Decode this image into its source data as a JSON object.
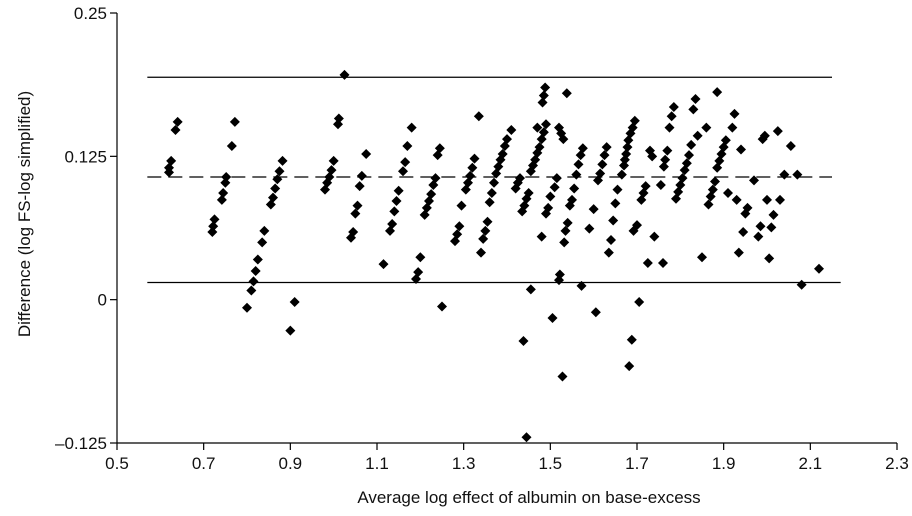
{
  "chart_data": {
    "type": "scatter",
    "title": "",
    "xlabel": "Average log effect of albumin on base-excess",
    "ylabel": "Difference (log FS-log simplified)",
    "xlim": [
      0.5,
      2.3
    ],
    "ylim": [
      -0.125,
      0.25
    ],
    "xticks": [
      0.5,
      0.7,
      0.9,
      1.1,
      1.3,
      1.5,
      1.7,
      1.9,
      2.1,
      2.3
    ],
    "yticks": [
      -0.125,
      0,
      0.125,
      0.25
    ],
    "xtick_labels": [
      "0.5",
      "0.7",
      "0.9",
      "1.1",
      "1.3",
      "1.5",
      "1.7",
      "1.9",
      "2.1",
      "2.3"
    ],
    "ytick_labels": [
      "–0.125",
      "0",
      "0.125",
      "0.25"
    ],
    "grid": false,
    "marker": "diamond",
    "marker_color": "#000000",
    "reference_lines": [
      {
        "kind": "upper-limit",
        "y": 0.194,
        "x_range": [
          0.57,
          2.15
        ],
        "style": "solid"
      },
      {
        "kind": "mean-difference",
        "y": 0.107,
        "x_range": [
          0.57,
          2.15
        ],
        "style": "dashed"
      },
      {
        "kind": "lower-limit",
        "y": 0.015,
        "x_range": [
          0.57,
          2.17
        ],
        "style": "solid"
      }
    ],
    "points": [
      [
        0.62,
        0.111
      ],
      [
        0.62,
        0.115
      ],
      [
        0.625,
        0.121
      ],
      [
        0.635,
        0.148
      ],
      [
        0.64,
        0.155
      ],
      [
        0.72,
        0.059
      ],
      [
        0.722,
        0.064
      ],
      [
        0.725,
        0.07
      ],
      [
        0.742,
        0.087
      ],
      [
        0.745,
        0.093
      ],
      [
        0.75,
        0.102
      ],
      [
        0.752,
        0.107
      ],
      [
        0.765,
        0.134
      ],
      [
        0.772,
        0.155
      ],
      [
        0.8,
        -0.007
      ],
      [
        0.81,
        0.008
      ],
      [
        0.815,
        0.016
      ],
      [
        0.82,
        0.025
      ],
      [
        0.825,
        0.035
      ],
      [
        0.835,
        0.05
      ],
      [
        0.84,
        0.06
      ],
      [
        0.855,
        0.083
      ],
      [
        0.86,
        0.089
      ],
      [
        0.865,
        0.097
      ],
      [
        0.87,
        0.105
      ],
      [
        0.875,
        0.112
      ],
      [
        0.882,
        0.121
      ],
      [
        0.9,
        -0.027
      ],
      [
        0.91,
        -0.002
      ],
      [
        0.98,
        0.096
      ],
      [
        0.985,
        0.102
      ],
      [
        0.99,
        0.107
      ],
      [
        0.995,
        0.113
      ],
      [
        1.0,
        0.121
      ],
      [
        1.01,
        0.153
      ],
      [
        1.012,
        0.158
      ],
      [
        1.025,
        0.196
      ],
      [
        1.04,
        0.054
      ],
      [
        1.045,
        0.059
      ],
      [
        1.05,
        0.075
      ],
      [
        1.055,
        0.082
      ],
      [
        1.06,
        0.099
      ],
      [
        1.065,
        0.108
      ],
      [
        1.075,
        0.127
      ],
      [
        1.115,
        0.031
      ],
      [
        1.13,
        0.06
      ],
      [
        1.135,
        0.066
      ],
      [
        1.14,
        0.077
      ],
      [
        1.145,
        0.086
      ],
      [
        1.15,
        0.095
      ],
      [
        1.16,
        0.112
      ],
      [
        1.165,
        0.12
      ],
      [
        1.17,
        0.134
      ],
      [
        1.18,
        0.15
      ],
      [
        1.19,
        0.018
      ],
      [
        1.195,
        0.024
      ],
      [
        1.2,
        0.037
      ],
      [
        1.21,
        0.074
      ],
      [
        1.215,
        0.08
      ],
      [
        1.22,
        0.086
      ],
      [
        1.225,
        0.092
      ],
      [
        1.23,
        0.1
      ],
      [
        1.235,
        0.106
      ],
      [
        1.24,
        0.126
      ],
      [
        1.245,
        0.132
      ],
      [
        1.25,
        -0.006
      ],
      [
        1.28,
        0.051
      ],
      [
        1.285,
        0.057
      ],
      [
        1.29,
        0.064
      ],
      [
        1.295,
        0.082
      ],
      [
        1.305,
        0.096
      ],
      [
        1.31,
        0.102
      ],
      [
        1.315,
        0.108
      ],
      [
        1.32,
        0.115
      ],
      [
        1.325,
        0.123
      ],
      [
        1.335,
        0.16
      ],
      [
        1.34,
        0.041
      ],
      [
        1.345,
        0.053
      ],
      [
        1.35,
        0.06
      ],
      [
        1.355,
        0.068
      ],
      [
        1.36,
        0.085
      ],
      [
        1.365,
        0.093
      ],
      [
        1.37,
        0.102
      ],
      [
        1.375,
        0.11
      ],
      [
        1.38,
        0.116
      ],
      [
        1.385,
        0.122
      ],
      [
        1.39,
        0.127
      ],
      [
        1.395,
        0.134
      ],
      [
        1.4,
        0.14
      ],
      [
        1.41,
        0.148
      ],
      [
        1.42,
        0.097
      ],
      [
        1.425,
        0.102
      ],
      [
        1.43,
        0.106
      ],
      [
        1.435,
        0.077
      ],
      [
        1.44,
        0.082
      ],
      [
        1.445,
        0.088
      ],
      [
        1.45,
        0.093
      ],
      [
        1.455,
        0.112
      ],
      [
        1.46,
        0.117
      ],
      [
        1.465,
        0.122
      ],
      [
        1.47,
        0.128
      ],
      [
        1.475,
        0.133
      ],
      [
        1.48,
        0.14
      ],
      [
        1.485,
        0.146
      ],
      [
        1.49,
        0.153
      ],
      [
        1.438,
        -0.036
      ],
      [
        1.445,
        -0.12
      ],
      [
        1.455,
        0.009
      ],
      [
        1.47,
        0.15
      ],
      [
        1.48,
        0.055
      ],
      [
        1.482,
        0.172
      ],
      [
        1.485,
        0.178
      ],
      [
        1.488,
        0.185
      ],
      [
        1.49,
        0.075
      ],
      [
        1.495,
        0.08
      ],
      [
        1.5,
        0.09
      ],
      [
        1.505,
        -0.016
      ],
      [
        1.51,
        0.098
      ],
      [
        1.515,
        0.106
      ],
      [
        1.52,
        0.017
      ],
      [
        1.522,
        0.022
      ],
      [
        1.52,
        0.15
      ],
      [
        1.525,
        0.145
      ],
      [
        1.528,
        -0.067
      ],
      [
        1.53,
        0.14
      ],
      [
        1.532,
        0.05
      ],
      [
        1.535,
        0.06
      ],
      [
        1.538,
        0.18
      ],
      [
        1.54,
        0.067
      ],
      [
        1.545,
        0.082
      ],
      [
        1.55,
        0.087
      ],
      [
        1.555,
        0.097
      ],
      [
        1.56,
        0.109
      ],
      [
        1.565,
        0.118
      ],
      [
        1.57,
        0.126
      ],
      [
        1.572,
        0.012
      ],
      [
        1.575,
        0.132
      ],
      [
        1.59,
        0.062
      ],
      [
        1.6,
        0.079
      ],
      [
        1.605,
        -0.011
      ],
      [
        1.61,
        0.104
      ],
      [
        1.615,
        0.11
      ],
      [
        1.62,
        0.118
      ],
      [
        1.625,
        0.126
      ],
      [
        1.63,
        0.133
      ],
      [
        1.635,
        0.041
      ],
      [
        1.64,
        0.052
      ],
      [
        1.645,
        0.069
      ],
      [
        1.65,
        0.084
      ],
      [
        1.655,
        0.096
      ],
      [
        1.665,
        0.109
      ],
      [
        1.67,
        0.117
      ],
      [
        1.672,
        0.122
      ],
      [
        1.675,
        0.127
      ],
      [
        1.678,
        0.133
      ],
      [
        1.68,
        0.139
      ],
      [
        1.682,
        -0.058
      ],
      [
        1.685,
        0.145
      ],
      [
        1.688,
        -0.035
      ],
      [
        1.69,
        0.15
      ],
      [
        1.692,
        0.06
      ],
      [
        1.695,
        0.156
      ],
      [
        1.7,
        0.065
      ],
      [
        1.705,
        -0.002
      ],
      [
        1.71,
        0.087
      ],
      [
        1.715,
        0.093
      ],
      [
        1.72,
        0.099
      ],
      [
        1.725,
        0.032
      ],
      [
        1.73,
        0.13
      ],
      [
        1.735,
        0.125
      ],
      [
        1.74,
        0.055
      ],
      [
        1.755,
        0.1
      ],
      [
        1.76,
        0.032
      ],
      [
        1.762,
        0.116
      ],
      [
        1.765,
        0.122
      ],
      [
        1.77,
        0.13
      ],
      [
        1.775,
        0.15
      ],
      [
        1.78,
        0.16
      ],
      [
        1.785,
        0.168
      ],
      [
        1.79,
        0.088
      ],
      [
        1.795,
        0.094
      ],
      [
        1.8,
        0.1
      ],
      [
        1.805,
        0.106
      ],
      [
        1.81,
        0.113
      ],
      [
        1.815,
        0.119
      ],
      [
        1.82,
        0.126
      ],
      [
        1.825,
        0.135
      ],
      [
        1.83,
        0.166
      ],
      [
        1.835,
        0.175
      ],
      [
        1.84,
        0.143
      ],
      [
        1.85,
        0.037
      ],
      [
        1.86,
        0.15
      ],
      [
        1.865,
        0.083
      ],
      [
        1.87,
        0.09
      ],
      [
        1.875,
        0.096
      ],
      [
        1.88,
        0.103
      ],
      [
        1.885,
        0.115
      ],
      [
        1.89,
        0.121
      ],
      [
        1.895,
        0.127
      ],
      [
        1.9,
        0.133
      ],
      [
        1.905,
        0.139
      ],
      [
        1.885,
        0.181
      ],
      [
        1.91,
        0.093
      ],
      [
        1.92,
        0.15
      ],
      [
        1.925,
        0.162
      ],
      [
        1.93,
        0.087
      ],
      [
        1.935,
        0.041
      ],
      [
        1.94,
        0.131
      ],
      [
        1.945,
        0.059
      ],
      [
        1.95,
        0.075
      ],
      [
        1.955,
        0.08
      ],
      [
        1.97,
        0.104
      ],
      [
        1.98,
        0.055
      ],
      [
        1.985,
        0.064
      ],
      [
        1.99,
        0.14
      ],
      [
        1.995,
        0.143
      ],
      [
        2.0,
        0.087
      ],
      [
        2.005,
        0.036
      ],
      [
        2.01,
        0.063
      ],
      [
        2.015,
        0.074
      ],
      [
        2.025,
        0.147
      ],
      [
        2.03,
        0.087
      ],
      [
        2.04,
        0.109
      ],
      [
        2.055,
        0.134
      ],
      [
        2.07,
        0.109
      ],
      [
        2.08,
        0.013
      ],
      [
        2.12,
        0.027
      ]
    ]
  }
}
